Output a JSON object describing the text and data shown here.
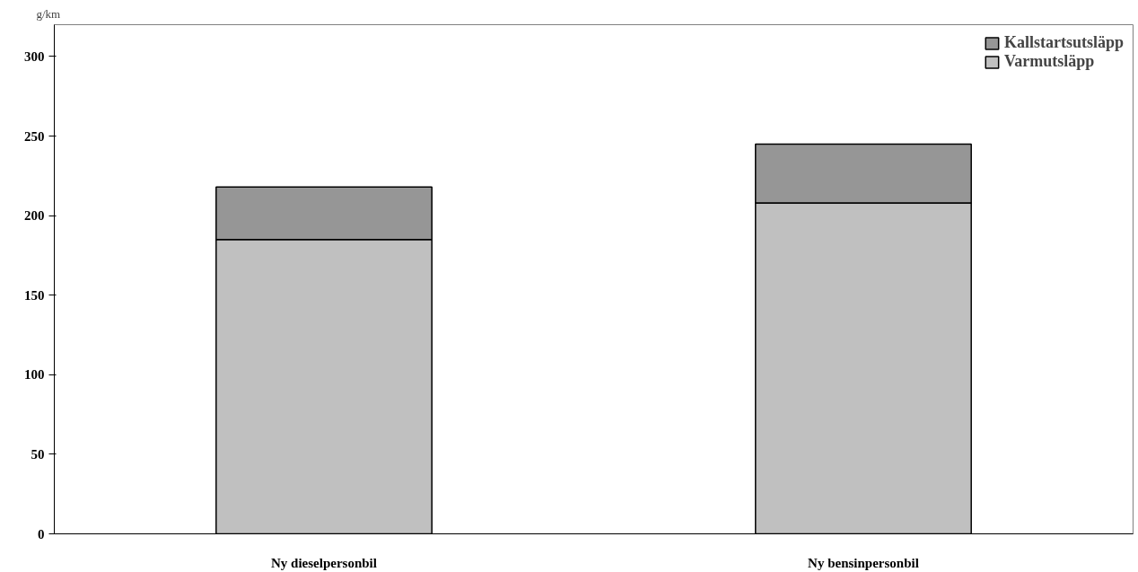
{
  "chart_data": {
    "type": "bar",
    "stacked": true,
    "ylabel": "g/km",
    "categories": [
      "Ny dieselpersonbil",
      "Ny bensinpersonbil"
    ],
    "series": [
      {
        "name": "Varmutsläpp",
        "color": "#c0c0c0",
        "values": [
          185,
          208
        ]
      },
      {
        "name": "Kallstartsutsläpp",
        "color": "#969696",
        "values": [
          33,
          37
        ]
      }
    ],
    "ylim": [
      0,
      320
    ],
    "yticks": [
      0,
      50,
      100,
      150,
      200,
      250,
      300
    ],
    "grid": false,
    "legend": "top right"
  }
}
